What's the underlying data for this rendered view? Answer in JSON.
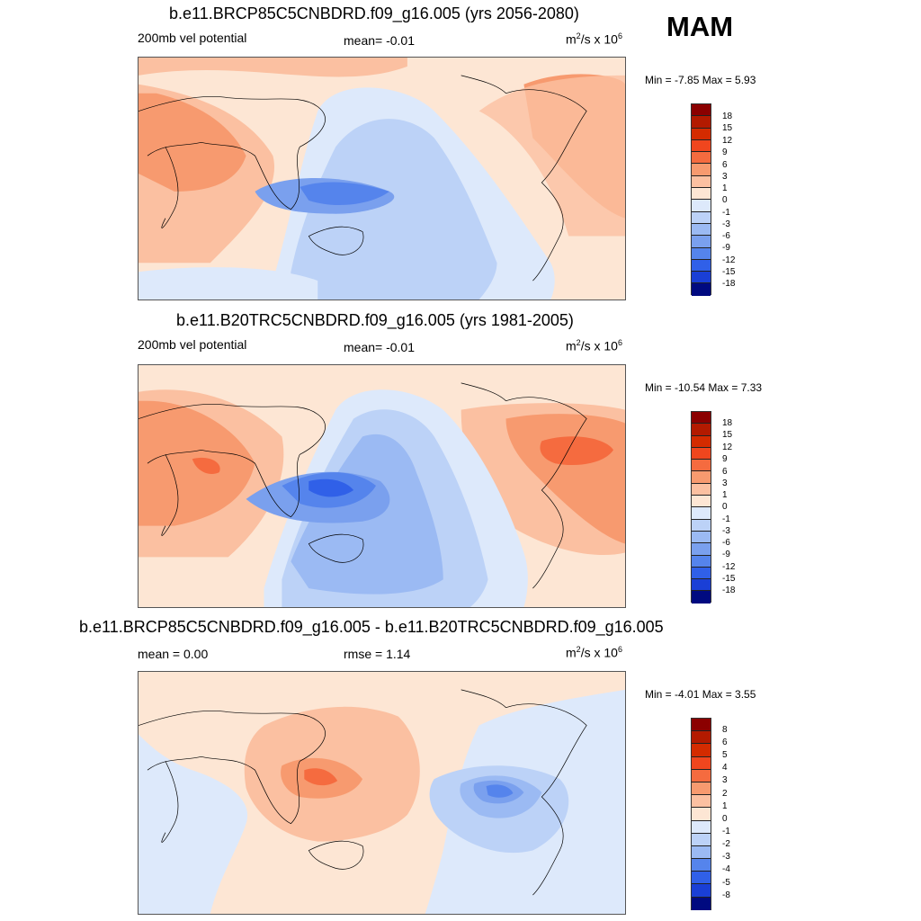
{
  "season": "MAM",
  "units_base": "m",
  "units_mid": "/s x 10",
  "units_exp1": "2",
  "units_exp2": "6",
  "panels": [
    {
      "title": "b.e11.BRCP85C5CNBDRD.f09_g16.005 (yrs 2056-2080)",
      "left_label": "200mb vel potential",
      "mid_label": "mean=  -0.01",
      "minmax": "Min =  -7.85 Max =   5.93",
      "colorbar_labels": [
        "18",
        "15",
        "12",
        "9",
        "6",
        "3",
        "1",
        "0",
        "-1",
        "-3",
        "-6",
        "-9",
        "-12",
        "-15",
        "-18"
      ]
    },
    {
      "title": "b.e11.B20TRC5CNBDRD.f09_g16.005 (yrs 1981-2005)",
      "left_label": "200mb vel potential",
      "mid_label": "mean=  -0.01",
      "minmax": "Min = -10.54 Max =   7.33",
      "colorbar_labels": [
        "18",
        "15",
        "12",
        "9",
        "6",
        "3",
        "1",
        "0",
        "-1",
        "-3",
        "-6",
        "-9",
        "-12",
        "-15",
        "-18"
      ]
    },
    {
      "title": "b.e11.BRCP85C5CNBDRD.f09_g16.005 - b.e11.B20TRC5CNBDRD.f09_g16.005",
      "left_label": "mean =   0.00",
      "mid_label": "rmse =   1.14",
      "minmax": "Min =  -4.01 Max =   3.55",
      "colorbar_labels": [
        "8",
        "6",
        "5",
        "4",
        "3",
        "2",
        "1",
        "0",
        "-1",
        "-2",
        "-3",
        "-4",
        "-5",
        "-8"
      ]
    }
  ],
  "colors": {
    "warm": [
      "#8b0000",
      "#b31a00",
      "#d42b00",
      "#f0461e",
      "#f56b3f",
      "#f79a6f",
      "#fbc0a1",
      "#fde6d4"
    ],
    "cool": [
      "#dde9fb",
      "#bcd2f7",
      "#9bbaf3",
      "#7aa0ee",
      "#5584ec",
      "#3060e8",
      "#1a3fd6",
      "#0a21b0",
      "#000a80"
    ]
  }
}
